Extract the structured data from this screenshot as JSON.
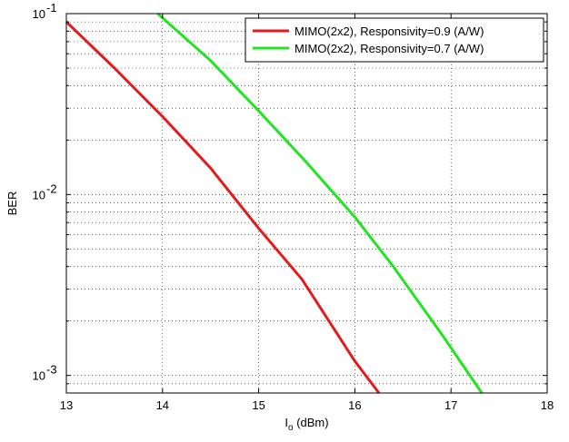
{
  "chart_data": {
    "type": "line",
    "title": "",
    "xlabel_main": "I",
    "xlabel_sub": "o",
    "xlabel_rest": " (dBm)",
    "ylabel": "BER",
    "xlim": [
      13,
      18
    ],
    "ylim": [
      0.0008,
      0.1
    ],
    "yscale": "log",
    "grid": true,
    "legend": "top-right",
    "x_ticks": [
      "13",
      "14",
      "15",
      "16",
      "17",
      "18"
    ],
    "y_ticks": [
      {
        "base": "10",
        "exp": "-1",
        "value": 0.1
      },
      {
        "base": "10",
        "exp": "-2",
        "value": 0.01
      },
      {
        "base": "10",
        "exp": "-3",
        "value": 0.001
      }
    ],
    "series": [
      {
        "name": "MIMO(2x2), Responsivity=0.9 (A/W)",
        "color": "#e41a1c",
        "x": [
          13.0,
          13.5,
          14.0,
          14.5,
          15.0,
          15.45,
          16.0,
          16.25
        ],
        "y": [
          0.09,
          0.05,
          0.027,
          0.014,
          0.0065,
          0.0034,
          0.0012,
          0.0008
        ]
      },
      {
        "name": "MIMO(2x2), Responsivity=0.7 (A/W)",
        "color": "#22e522",
        "x": [
          13.95,
          14.5,
          15.0,
          15.5,
          16.0,
          16.4,
          16.9,
          17.32
        ],
        "y": [
          0.1,
          0.055,
          0.029,
          0.015,
          0.0075,
          0.004,
          0.0017,
          0.0008
        ]
      }
    ]
  }
}
